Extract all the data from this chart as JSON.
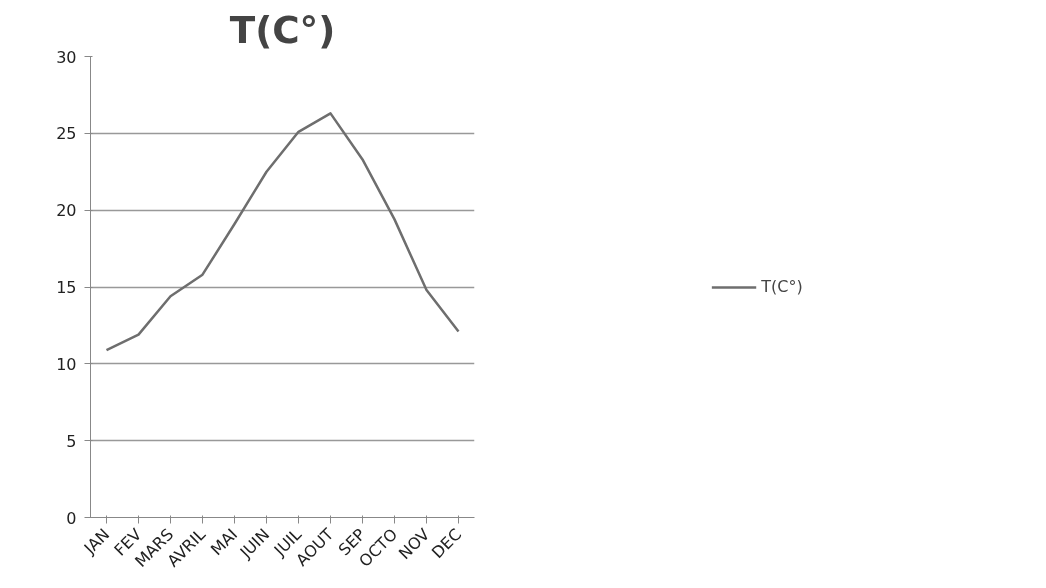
{
  "chart_data": {
    "type": "line",
    "title": "T(C°)",
    "categories": [
      "JAN",
      "FEV",
      "MARS",
      "AVRIL",
      "MAI",
      "JUIN",
      "JUIL",
      "AOUT",
      "SEP",
      "OCTO",
      "NOV",
      "DEC"
    ],
    "series": [
      {
        "name": "T(C°)",
        "color": "#6e6e6e",
        "values": [
          10.9,
          11.9,
          14.4,
          15.8,
          19.1,
          22.5,
          25.1,
          26.3,
          23.3,
          19.4,
          14.8,
          12.1
        ]
      }
    ],
    "ylim": [
      0,
      30
    ],
    "yticks": [
      0,
      5,
      10,
      15,
      20,
      25,
      30
    ],
    "grid": "y",
    "legend": "right",
    "marker": "none"
  }
}
